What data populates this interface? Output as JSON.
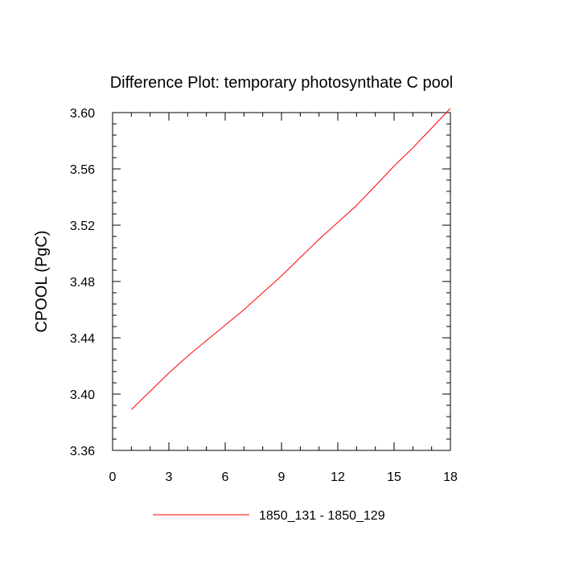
{
  "chart_data": {
    "type": "line",
    "title": "Difference Plot: temporary photosynthate C pool",
    "xlabel": "",
    "ylabel": "CPOOL  (PgC)",
    "xlim": [
      0,
      18
    ],
    "ylim": [
      3.36,
      3.6
    ],
    "x_ticks": [
      0,
      3,
      6,
      9,
      12,
      15,
      18
    ],
    "x_tick_labels": [
      "0",
      "3",
      "6",
      "9",
      "12",
      "15",
      "18"
    ],
    "y_ticks": [
      3.36,
      3.4,
      3.44,
      3.48,
      3.52,
      3.56,
      3.6
    ],
    "y_tick_labels": [
      "3.36",
      "3.40",
      "3.44",
      "3.48",
      "3.52",
      "3.56",
      "3.60"
    ],
    "x_minor_step": 1,
    "y_minor_step": 0.008,
    "grid": false,
    "legend_position": "bottom-center",
    "series": [
      {
        "name": "1850_131 - 1850_129",
        "color": "#ff0000",
        "x": [
          1,
          2,
          3,
          4,
          5,
          6,
          7,
          8,
          9,
          10,
          11,
          12,
          13,
          14,
          15,
          16,
          17,
          18
        ],
        "y": [
          3.389,
          3.402,
          3.415,
          3.427,
          3.438,
          3.449,
          3.46,
          3.472,
          3.484,
          3.497,
          3.51,
          3.522,
          3.534,
          3.548,
          3.562,
          3.575,
          3.589,
          3.603
        ]
      }
    ]
  }
}
